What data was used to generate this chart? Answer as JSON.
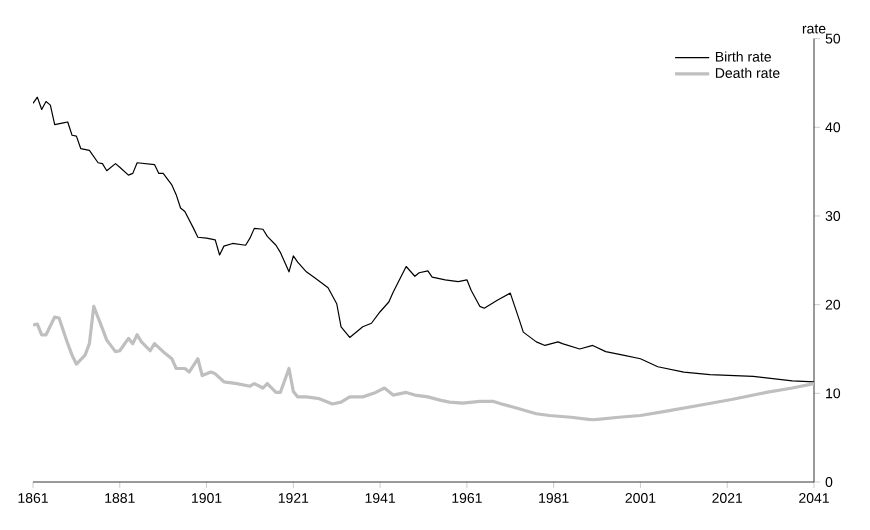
{
  "chart_data": {
    "type": "line",
    "ylabel": "rate",
    "xlim": [
      1861,
      2041
    ],
    "xticks": [
      1861,
      1881,
      1901,
      1921,
      1941,
      1961,
      1981,
      2001,
      2021,
      2041
    ],
    "ylim": [
      0,
      50
    ],
    "yticks": [
      0,
      10,
      20,
      30,
      40,
      50
    ],
    "legend": "top right",
    "grid": false,
    "marker": "none",
    "line_style": "solid",
    "series": [
      {
        "name": "Birth rate",
        "color": "#000000",
        "x": [
          1861,
          1862,
          1863,
          1864,
          1865,
          1866,
          1867,
          1868,
          1869,
          1870,
          1871,
          1872,
          1874,
          1876,
          1877,
          1878,
          1880,
          1881,
          1883,
          1884,
          1885,
          1887,
          1889,
          1890,
          1891,
          1893,
          1894,
          1895,
          1896,
          1898,
          1899,
          1901,
          1903,
          1904,
          1905,
          1907,
          1910,
          1911,
          1912,
          1914,
          1915,
          1917,
          1918,
          1920,
          1921,
          1922,
          1924,
          1926,
          1929,
          1931,
          1932,
          1934,
          1937,
          1939,
          1941,
          1943,
          1944,
          1947,
          1949,
          1950,
          1952,
          1953,
          1956,
          1959,
          1961,
          1962,
          1964,
          1965,
          1968,
          1971,
          1973,
          1974,
          1977,
          1979,
          1982,
          1983,
          1987,
          1990,
          1993,
          1997,
          2001,
          2005,
          2011,
          2017,
          2027,
          2036,
          2041
        ],
        "values": [
          42.7,
          43.4,
          42.0,
          42.9,
          42.5,
          40.3,
          40.4,
          40.5,
          40.6,
          39.1,
          39.0,
          37.6,
          37.4,
          36.0,
          35.9,
          35.1,
          35.9,
          35.5,
          34.6,
          34.8,
          36.0,
          35.9,
          35.8,
          34.8,
          34.8,
          33.5,
          32.4,
          30.9,
          30.5,
          28.6,
          27.6,
          27.5,
          27.3,
          25.6,
          26.6,
          26.9,
          26.7,
          27.5,
          28.6,
          28.5,
          27.7,
          26.7,
          25.9,
          23.7,
          25.5,
          24.8,
          23.7,
          23.0,
          21.9,
          20.1,
          17.5,
          16.3,
          17.5,
          17.9,
          19.2,
          20.3,
          21.4,
          24.3,
          23.2,
          23.6,
          23.8,
          23.1,
          22.8,
          22.6,
          22.8,
          21.6,
          19.8,
          19.6,
          20.5,
          21.3,
          18.4,
          16.9,
          15.8,
          15.4,
          15.8,
          15.6,
          15.0,
          15.4,
          14.7,
          14.3,
          13.9,
          13.0,
          12.4,
          12.1,
          11.9,
          11.4,
          11.3
        ]
      },
      {
        "name": "Death rate",
        "color": "#bfbfbf",
        "x": [
          1861,
          1862,
          1863,
          1864,
          1866,
          1867,
          1869,
          1870,
          1871,
          1873,
          1874,
          1875,
          1877,
          1878,
          1880,
          1881,
          1883,
          1884,
          1885,
          1886,
          1888,
          1889,
          1891,
          1893,
          1894,
          1896,
          1897,
          1899,
          1900,
          1902,
          1903,
          1905,
          1908,
          1911,
          1912,
          1914,
          1915,
          1917,
          1918,
          1920,
          1921,
          1922,
          1924,
          1927,
          1930,
          1932,
          1934,
          1937,
          1940,
          1942,
          1944,
          1947,
          1949,
          1952,
          1955,
          1957,
          1960,
          1964,
          1967,
          1969,
          1972,
          1977,
          1980,
          1985,
          1990,
          1996,
          2001,
          2007,
          2014,
          2022,
          2030,
          2036,
          2041
        ],
        "values": [
          17.7,
          17.8,
          16.6,
          16.6,
          18.6,
          18.5,
          15.6,
          14.3,
          13.3,
          14.3,
          15.6,
          19.8,
          17.3,
          16.0,
          14.7,
          14.8,
          16.2,
          15.6,
          16.6,
          15.8,
          14.8,
          15.6,
          14.7,
          13.9,
          12.8,
          12.8,
          12.4,
          13.9,
          12.0,
          12.4,
          12.2,
          11.3,
          11.1,
          10.8,
          11.1,
          10.6,
          11.1,
          10.1,
          10.1,
          12.8,
          10.2,
          9.6,
          9.6,
          9.4,
          8.8,
          9.0,
          9.6,
          9.6,
          10.1,
          10.6,
          9.8,
          10.1,
          9.8,
          9.6,
          9.2,
          9.0,
          8.9,
          9.1,
          9.1,
          8.8,
          8.4,
          7.7,
          7.5,
          7.3,
          7.0,
          7.3,
          7.5,
          8.0,
          8.6,
          9.3,
          10.1,
          10.6,
          11.1
        ]
      }
    ]
  }
}
